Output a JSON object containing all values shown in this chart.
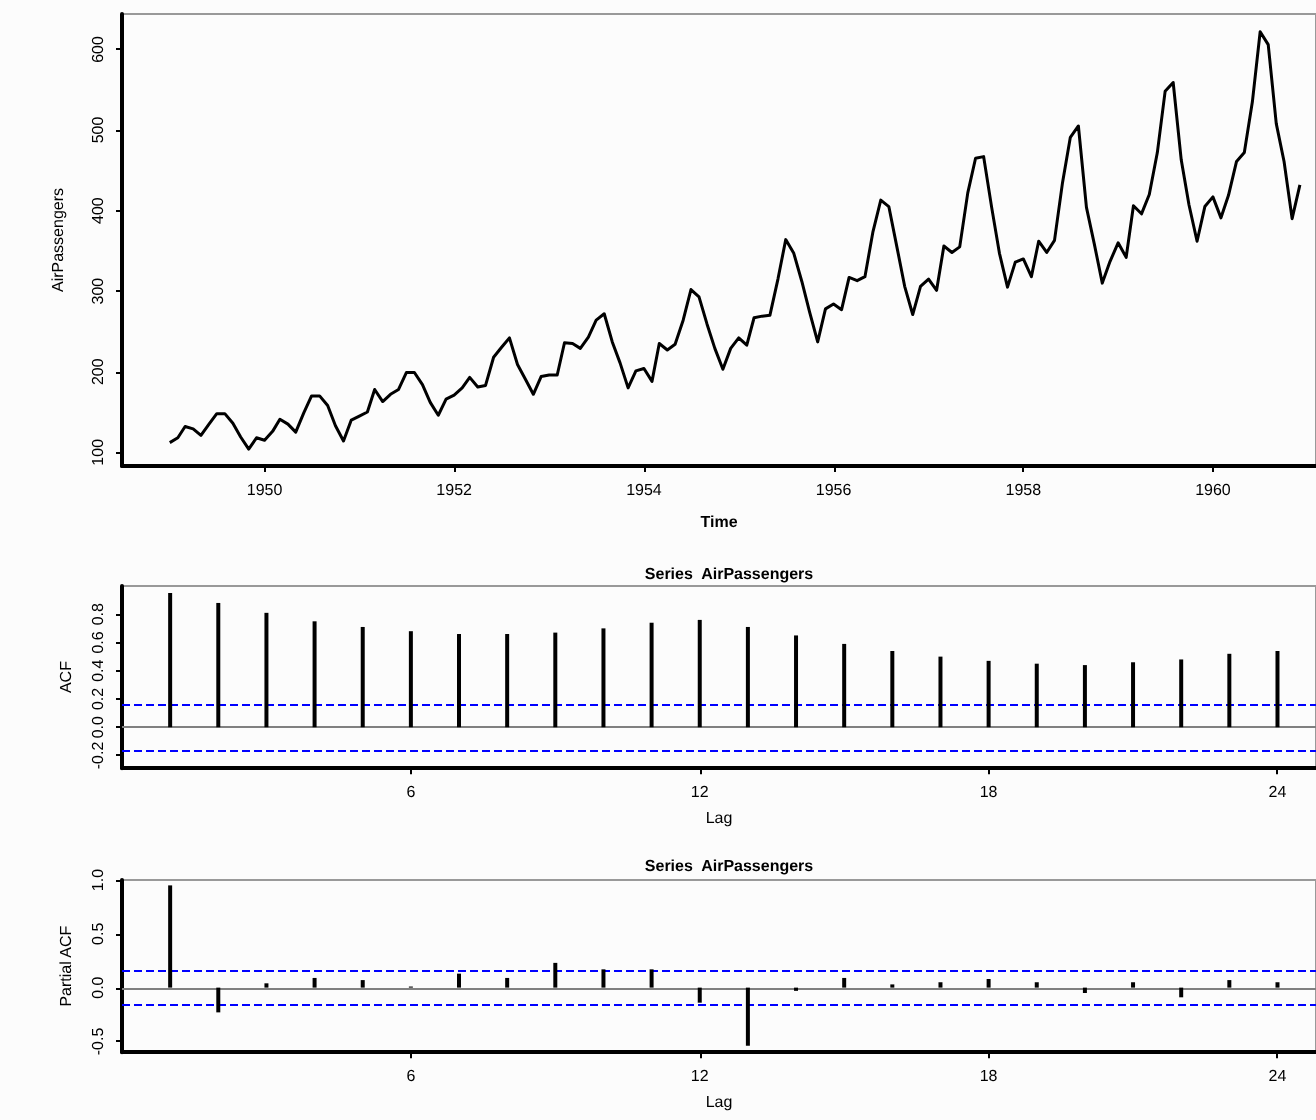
{
  "chart_data": [
    {
      "type": "line",
      "xlabel": "Time",
      "ylabel": "AirPassengers",
      "color": "#000000",
      "x": [
        "1949-01",
        "1949-02",
        "1949-03",
        "1949-04",
        "1949-05",
        "1949-06",
        "1949-07",
        "1949-08",
        "1949-09",
        "1949-10",
        "1949-11",
        "1949-12",
        "1950-01",
        "1950-02",
        "1950-03",
        "1950-04",
        "1950-05",
        "1950-06",
        "1950-07",
        "1950-08",
        "1950-09",
        "1950-10",
        "1950-11",
        "1950-12",
        "1951-01",
        "1951-02",
        "1951-03",
        "1951-04",
        "1951-05",
        "1951-06",
        "1951-07",
        "1951-08",
        "1951-09",
        "1951-10",
        "1951-11",
        "1951-12",
        "1952-01",
        "1952-02",
        "1952-03",
        "1952-04",
        "1952-05",
        "1952-06",
        "1952-07",
        "1952-08",
        "1952-09",
        "1952-10",
        "1952-11",
        "1952-12",
        "1953-01",
        "1953-02",
        "1953-03",
        "1953-04",
        "1953-05",
        "1953-06",
        "1953-07",
        "1953-08",
        "1953-09",
        "1953-10",
        "1953-11",
        "1953-12",
        "1954-01",
        "1954-02",
        "1954-03",
        "1954-04",
        "1954-05",
        "1954-06",
        "1954-07",
        "1954-08",
        "1954-09",
        "1954-10",
        "1954-11",
        "1954-12",
        "1955-01",
        "1955-02",
        "1955-03",
        "1955-04",
        "1955-05",
        "1955-06",
        "1955-07",
        "1955-08",
        "1955-09",
        "1955-10",
        "1955-11",
        "1955-12",
        "1956-01",
        "1956-02",
        "1956-03",
        "1956-04",
        "1956-05",
        "1956-06",
        "1956-07",
        "1956-08",
        "1956-09",
        "1956-10",
        "1956-11",
        "1956-12",
        "1957-01",
        "1957-02",
        "1957-03",
        "1957-04",
        "1957-05",
        "1957-06",
        "1957-07",
        "1957-08",
        "1957-09",
        "1957-10",
        "1957-11",
        "1957-12",
        "1958-01",
        "1958-02",
        "1958-03",
        "1958-04",
        "1958-05",
        "1958-06",
        "1958-07",
        "1958-08",
        "1958-09",
        "1958-10",
        "1958-11",
        "1958-12",
        "1959-01",
        "1959-02",
        "1959-03",
        "1959-04",
        "1959-05",
        "1959-06",
        "1959-07",
        "1959-08",
        "1959-09",
        "1959-10",
        "1959-11",
        "1959-12",
        "1960-01",
        "1960-02",
        "1960-03",
        "1960-04",
        "1960-05",
        "1960-06",
        "1960-07",
        "1960-08",
        "1960-09",
        "1960-10",
        "1960-11",
        "1960-12"
      ],
      "values": [
        112,
        118,
        132,
        129,
        121,
        135,
        148,
        148,
        136,
        119,
        104,
        118,
        115,
        126,
        141,
        135,
        125,
        149,
        170,
        170,
        158,
        133,
        114,
        140,
        145,
        150,
        178,
        163,
        172,
        178,
        199,
        199,
        184,
        162,
        146,
        166,
        171,
        180,
        193,
        181,
        183,
        218,
        230,
        242,
        209,
        191,
        172,
        194,
        196,
        196,
        236,
        235,
        229,
        243,
        264,
        272,
        237,
        211,
        180,
        201,
        204,
        188,
        235,
        227,
        234,
        264,
        302,
        293,
        259,
        229,
        203,
        229,
        242,
        233,
        267,
        269,
        270,
        315,
        364,
        347,
        312,
        274,
        237,
        278,
        284,
        277,
        317,
        313,
        318,
        374,
        413,
        405,
        355,
        306,
        271,
        306,
        315,
        301,
        356,
        348,
        355,
        422,
        465,
        467,
        404,
        347,
        305,
        336,
        340,
        318,
        362,
        348,
        363,
        435,
        491,
        505,
        404,
        359,
        310,
        337,
        360,
        342,
        406,
        396,
        420,
        472,
        548,
        559,
        463,
        407,
        362,
        405,
        417,
        391,
        419,
        461,
        472,
        535,
        622,
        606,
        508,
        461,
        390,
        432
      ],
      "xlim": [
        "1948-07",
        "1961-02"
      ],
      "xticks": [
        {
          "value": "1950",
          "label": "1950"
        },
        {
          "value": "1952",
          "label": "1952"
        },
        {
          "value": "1954",
          "label": "1954"
        },
        {
          "value": "1956",
          "label": "1956"
        },
        {
          "value": "1958",
          "label": "1958"
        },
        {
          "value": "1960",
          "label": "1960"
        }
      ],
      "ylim": [
        83,
        644
      ],
      "yticks": [
        100,
        200,
        300,
        400,
        500,
        600
      ],
      "grid": false
    },
    {
      "type": "bar",
      "title": "Series  AirPassengers",
      "xlabel": "Lag",
      "ylabel": "ACF",
      "color": "#000000",
      "x": [
        1,
        2,
        3,
        4,
        5,
        6,
        7,
        8,
        9,
        10,
        11,
        12,
        13,
        14,
        15,
        16,
        17,
        18,
        19,
        20,
        21,
        22,
        23,
        24
      ],
      "values": [
        0.95,
        0.88,
        0.81,
        0.75,
        0.71,
        0.68,
        0.66,
        0.66,
        0.67,
        0.7,
        0.74,
        0.76,
        0.71,
        0.65,
        0.59,
        0.54,
        0.5,
        0.47,
        0.45,
        0.44,
        0.46,
        0.48,
        0.52,
        0.54
      ],
      "xlim": [
        0,
        24.8
      ],
      "xticks": [
        6,
        12,
        18,
        24
      ],
      "ylim": [
        -0.29,
        1.0
      ],
      "yticks": [
        {
          "value": -0.2,
          "label": "-0.2"
        },
        {
          "value": 0,
          "label": "0.0"
        },
        {
          "value": 0.2,
          "label": "0.2"
        },
        {
          "value": 0.4,
          "label": "0.4"
        },
        {
          "value": 0.6,
          "label": "0.6"
        },
        {
          "value": 0.8,
          "label": "0.8"
        }
      ],
      "grid": false,
      "ref_lines": [
        {
          "axis": "y",
          "value": 0,
          "color": "#808080",
          "line_style": "solid"
        },
        {
          "axis": "y",
          "value": 0.16,
          "color": "#0000ff",
          "line_style": "dashed"
        },
        {
          "axis": "y",
          "value": -0.16,
          "color": "#0000ff",
          "line_style": "dashed"
        }
      ]
    },
    {
      "type": "bar",
      "title": "Series  AirPassengers",
      "xlabel": "Lag",
      "ylabel": "Partial ACF",
      "color": "#000000",
      "x": [
        1,
        2,
        3,
        4,
        5,
        6,
        7,
        8,
        9,
        10,
        11,
        12,
        13,
        14,
        15,
        16,
        17,
        18,
        19,
        20,
        21,
        22,
        23,
        24
      ],
      "values": [
        0.95,
        -0.23,
        0.04,
        0.09,
        0.07,
        0.01,
        0.13,
        0.09,
        0.23,
        0.17,
        0.17,
        -0.14,
        -0.54,
        -0.03,
        0.09,
        0.03,
        0.05,
        0.08,
        0.05,
        -0.05,
        0.05,
        -0.09,
        0.07,
        0.05
      ],
      "xlim": [
        0,
        24.8
      ],
      "xticks": [
        6,
        12,
        18,
        24
      ],
      "ylim": [
        -0.6,
        1.0
      ],
      "yticks": [
        {
          "value": -0.5,
          "label": "-0.5"
        },
        {
          "value": 0,
          "label": "0.0"
        },
        {
          "value": 0.5,
          "label": "0.5"
        },
        {
          "value": 1,
          "label": "1.0"
        }
      ],
      "grid": false,
      "ref_lines": [
        {
          "axis": "y",
          "value": 0,
          "color": "#808080",
          "line_style": "solid"
        },
        {
          "axis": "y",
          "value": 0.16,
          "color": "#0000ff",
          "line_style": "dashed"
        },
        {
          "axis": "y",
          "value": -0.16,
          "color": "#0000ff",
          "line_style": "dashed"
        }
      ]
    }
  ]
}
